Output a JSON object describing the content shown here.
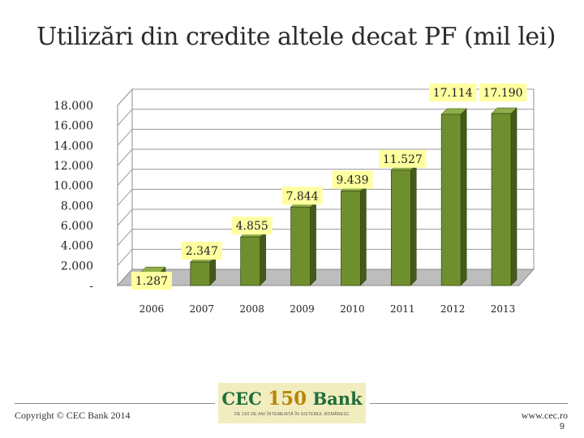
{
  "title": "Utilizări din credite altele decat PF (mil lei)",
  "chart_data": {
    "type": "bar",
    "title": "Utilizări din credite altele decat PF (mil lei)",
    "categories": [
      "2006",
      "2007",
      "2008",
      "2009",
      "2010",
      "2011",
      "2012",
      "2013"
    ],
    "values": [
      1287,
      2347,
      4855,
      7844,
      9439,
      11527,
      17114,
      17190
    ],
    "value_labels": [
      "1.287",
      "2.347",
      "4.855",
      "7.844",
      "9.439",
      "11.527",
      "17.114",
      "17.190"
    ],
    "y_ticks": [
      "-",
      "2.000",
      "4.000",
      "6.000",
      "8.000",
      "10.000",
      "12.000",
      "14.000",
      "16.000",
      "18.000"
    ],
    "ylim": [
      0,
      18000
    ],
    "grid": true,
    "bar_color": "#6f8f2e",
    "label_bg": "#ffffa0"
  },
  "footer": {
    "copyright": "Copyright © CEC Bank 2014",
    "website": "www.cec.ro",
    "page": "9"
  },
  "logo": {
    "cec": "CEC",
    "num": "150",
    "bank": "Bank",
    "tagline": "DE 150 DE ANI ÎNTEMEIATĂ ÎN SISTEMUL ROMÂNESC"
  }
}
